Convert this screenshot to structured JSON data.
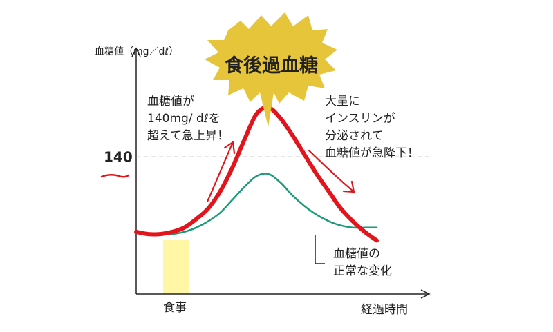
{
  "chart_data": {
    "type": "line",
    "title": "",
    "ylabel": "血糖値（mg／dℓ）",
    "xlabel": "経過時間",
    "y_reference": {
      "value": 140,
      "label": "140",
      "style": "dashed"
    },
    "x_marker": {
      "label": "食事",
      "color": "#fff6a6"
    },
    "x": [
      0,
      1,
      2,
      3,
      4,
      5,
      6,
      7,
      8,
      9,
      10,
      11,
      12,
      13,
      14,
      15,
      16,
      17,
      18,
      19,
      20
    ],
    "series": [
      {
        "name": "",
        "color": "#e3141c",
        "values": [
          105,
          104,
          104,
          105,
          107,
          111,
          116,
          124,
          135,
          148,
          160,
          163,
          158,
          150,
          141,
          132,
          124,
          116,
          110,
          105,
          101
        ]
      },
      {
        "name": "血糖値の正常な変化",
        "color": "#1a9a78",
        "values": [
          105,
          104,
          104,
          104,
          105,
          107,
          110,
          114,
          120,
          126,
          131,
          132,
          128,
          122,
          117,
          113,
          110,
          108,
          107,
          107,
          107
        ]
      }
    ],
    "xlim": [
      0,
      20
    ],
    "ylim": [
      76,
      190
    ],
    "grid": false,
    "legend": "none"
  },
  "annotations": {
    "burst": "食後過血糖",
    "rise": [
      "血糖値が",
      "140mg/ dℓを",
      "超えて急上昇！"
    ],
    "fall": [
      "大量に",
      "インスリンが",
      "分泌されて",
      "血糖値が急降下！"
    ],
    "normal": [
      "血糖値の",
      "正常な変化"
    ]
  },
  "colors": {
    "burst_fill": "#e7c53a",
    "meal_band": "#fff6a6",
    "high_line": "#e3141c",
    "normal_line": "#1a9a78",
    "reference_line": "#9a9a9a"
  }
}
